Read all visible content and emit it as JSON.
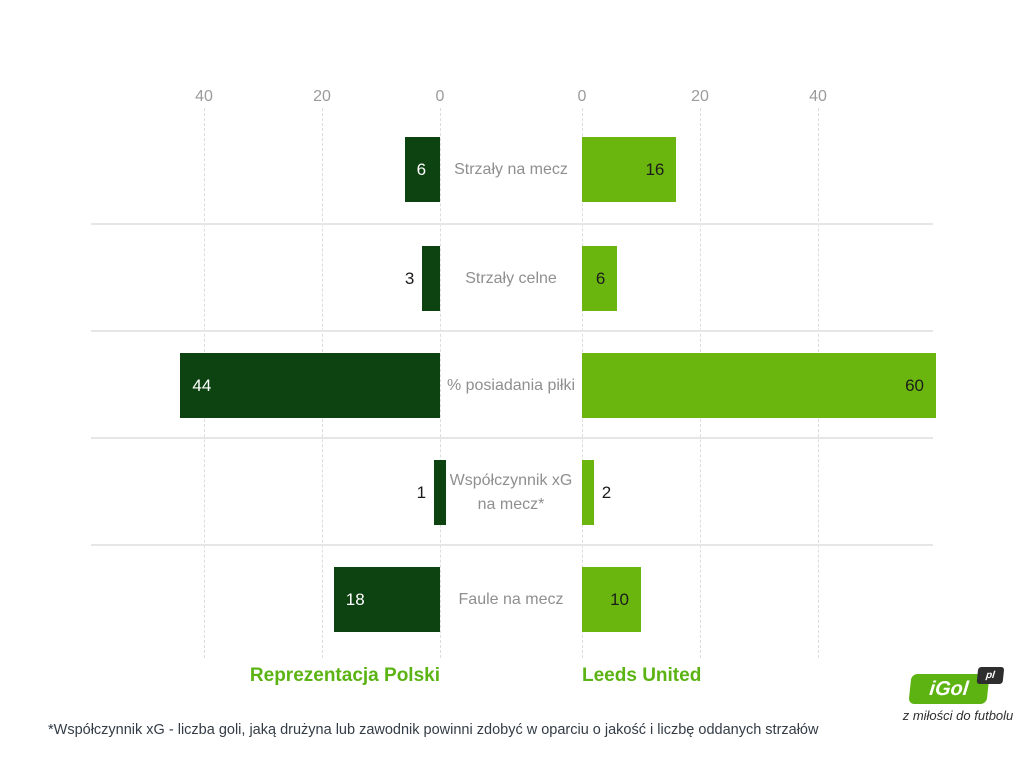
{
  "chart_data": {
    "type": "bar",
    "variant": "diverging-horizontal-comparison",
    "title": "",
    "categories": [
      "Strzały na mecz",
      "Strzały celne",
      "% posiadania piłki",
      "Współczynnik xG na mecz*",
      "Faule na mecz"
    ],
    "series": [
      {
        "name": "Reprezentacja Polski",
        "side": "left",
        "values": [
          6,
          3,
          44,
          1,
          18
        ]
      },
      {
        "name": "Leeds United",
        "side": "right",
        "values": [
          16,
          6,
          60,
          2,
          10
        ]
      }
    ],
    "axis": {
      "ticks_left": [
        40,
        20,
        0
      ],
      "ticks_right": [
        0,
        20,
        40
      ],
      "tick_interval": 20,
      "max_units_per_side": 59
    },
    "grid": "dashed-vertical",
    "legend_position": "bottom"
  },
  "colors": {
    "bar_dark_green": "#0d4211",
    "bar_light_green": "#6ab60e",
    "label_on_dark": "#ffffff",
    "label_on_light": "#1c1c1c",
    "legend_green": "#5bb314",
    "tick_gray": "#9b9b9b",
    "category_gray": "#8f8f8f",
    "logo_green": "#5cb312",
    "logo_badge_dark": "#2e2e2e"
  },
  "footnote": "*Współczynnik xG - liczba goli, jaką drużyna lub zawodnik powinni zdobyć w oparciu o jakość i liczbę oddanych strzałów",
  "logo": {
    "name": "iGol",
    "suffix": "pl",
    "tagline": "z miłości do futbolu"
  }
}
